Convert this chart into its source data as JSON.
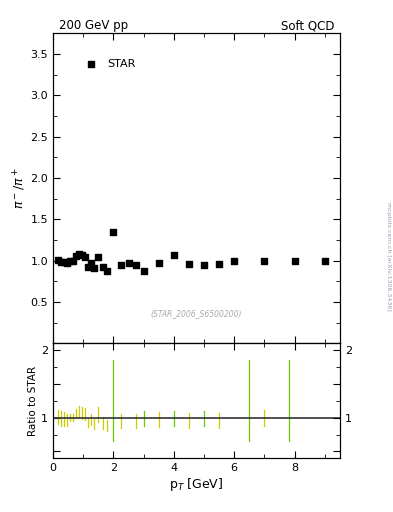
{
  "title_left": "200 GeV pp",
  "title_right": "Soft QCD",
  "ylabel_main": "pi^- / pi^+",
  "ylabel_ratio": "Ratio to STAR",
  "xlabel": "p$_T$ [GeV]",
  "watermark": "(STAR_2006_S6500200)",
  "side_label": "mcplots.cern.ch [arXiv:1306.3436]",
  "legend_label": "STAR",
  "data_x": [
    0.15,
    0.25,
    0.35,
    0.45,
    0.55,
    0.65,
    0.75,
    0.85,
    0.95,
    1.05,
    1.15,
    1.25,
    1.35,
    1.5,
    1.65,
    1.8,
    2.0,
    2.25,
    2.5,
    2.75,
    3.0,
    3.5,
    4.0,
    4.5,
    5.0,
    5.5,
    6.0,
    7.0,
    8.0,
    9.0
  ],
  "data_y": [
    1.01,
    0.99,
    0.98,
    0.97,
    1.0,
    1.0,
    1.06,
    1.08,
    1.07,
    1.05,
    0.92,
    0.97,
    0.91,
    1.05,
    0.92,
    0.88,
    1.35,
    0.95,
    0.97,
    0.95,
    0.88,
    0.97,
    1.07,
    0.96,
    0.95,
    0.96,
    1.0,
    1.0,
    1.0,
    1.0
  ],
  "main_ylim": [
    0.0,
    3.75
  ],
  "main_yticks": [
    0.5,
    1.0,
    1.5,
    2.0,
    2.5,
    3.0,
    3.5
  ],
  "ratio_ylim": [
    0.4,
    2.1
  ],
  "ratio_yticks": [
    0.5,
    1.0,
    1.5,
    2.0
  ],
  "ratio_ytick_labels": [
    "",
    "1",
    "",
    "2"
  ],
  "xlim": [
    0.0,
    9.5
  ],
  "xticks": [
    0,
    2,
    4,
    6,
    8
  ],
  "yellow_lines_x": [
    0.15,
    0.25,
    0.35,
    0.45,
    0.55,
    0.65,
    0.75,
    0.85,
    0.95,
    1.05,
    1.15,
    1.25,
    1.35,
    1.5,
    1.65,
    1.8,
    2.25,
    2.75,
    3.5,
    4.5,
    5.5,
    7.0
  ],
  "yellow_lines_y_top": [
    1.12,
    1.1,
    1.08,
    1.06,
    1.05,
    1.05,
    1.13,
    1.17,
    1.16,
    1.14,
    0.98,
    1.05,
    0.98,
    1.16,
    1.01,
    0.96,
    1.05,
    1.05,
    1.08,
    1.07,
    1.07,
    1.12
  ],
  "yellow_lines_y_bot": [
    0.9,
    0.88,
    0.88,
    0.88,
    0.95,
    0.95,
    0.99,
    0.99,
    0.98,
    0.96,
    0.86,
    0.89,
    0.84,
    0.94,
    0.83,
    0.8,
    0.85,
    0.85,
    0.86,
    0.85,
    0.85,
    0.88
  ],
  "green_lines_x": [
    2.0,
    3.0,
    4.0,
    5.0,
    6.5,
    7.8
  ],
  "green_lines_y_top": [
    1.85,
    1.1,
    1.1,
    1.1,
    1.85,
    1.85
  ],
  "green_lines_y_bot": [
    0.65,
    0.88,
    0.88,
    0.88,
    0.65,
    0.65
  ],
  "data_color": "#000000",
  "yellow_color": "#cccc00",
  "green_color": "#66cc00",
  "ratio_line_color": "#333333",
  "bg_color": "#ffffff"
}
